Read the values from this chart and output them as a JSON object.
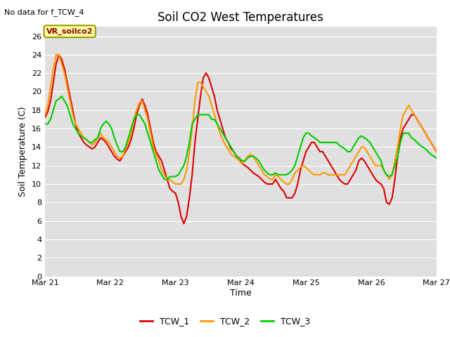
{
  "title": "Soil CO2 West Temperatures",
  "xlabel": "Time",
  "ylabel": "Soil Temperature (C)",
  "note": "No data for f_TCW_4",
  "annotation_label": "VR_soilco2",
  "ylim": [
    0,
    27
  ],
  "yticks": [
    0,
    2,
    4,
    6,
    8,
    10,
    12,
    14,
    16,
    18,
    20,
    22,
    24,
    26
  ],
  "x_start": 0,
  "x_end": 144,
  "xtick_positions": [
    0,
    24,
    48,
    72,
    96,
    120,
    144
  ],
  "xtick_labels": [
    "Mar 21",
    "Mar 22",
    "Mar 23",
    "Mar 24",
    "Mar 25",
    "Mar 26",
    "Mar 27"
  ],
  "legend_entries": [
    "TCW_1",
    "TCW_2",
    "TCW_3"
  ],
  "line_colors": [
    "#dd0000",
    "#ff9900",
    "#00cc00"
  ],
  "line_width": 1.5,
  "fig_bg_color": "#ffffff",
  "axes_bg": "#e0e0e0",
  "grid_color": "#ffffff",
  "title_fontsize": 12,
  "label_fontsize": 9,
  "tick_fontsize": 8,
  "TCW_1": [
    17.2,
    17.8,
    19.0,
    21.0,
    23.0,
    24.0,
    23.5,
    22.5,
    21.0,
    19.5,
    18.0,
    16.5,
    15.5,
    15.0,
    14.5,
    14.2,
    14.0,
    13.8,
    14.0,
    14.5,
    15.0,
    14.8,
    14.5,
    14.0,
    13.5,
    13.0,
    12.7,
    12.5,
    13.0,
    13.5,
    14.0,
    14.8,
    16.0,
    17.5,
    18.5,
    19.2,
    18.5,
    17.5,
    16.0,
    14.5,
    13.5,
    13.0,
    12.5,
    11.5,
    10.5,
    9.5,
    9.2,
    9.0,
    8.0,
    6.5,
    5.7,
    6.5,
    8.5,
    11.0,
    14.5,
    17.0,
    19.5,
    21.5,
    22.0,
    21.5,
    20.5,
    19.5,
    18.0,
    17.0,
    16.0,
    15.0,
    14.5,
    13.8,
    13.5,
    13.0,
    12.8,
    12.2,
    12.0,
    11.8,
    11.5,
    11.2,
    11.0,
    10.8,
    10.5,
    10.2,
    10.0,
    10.0,
    10.0,
    10.5,
    10.0,
    9.5,
    9.2,
    8.5,
    8.5,
    8.5,
    9.0,
    10.0,
    11.5,
    12.5,
    13.5,
    14.0,
    14.5,
    14.5,
    14.0,
    13.5,
    13.5,
    13.0,
    12.5,
    12.0,
    11.5,
    11.0,
    10.5,
    10.2,
    10.0,
    10.0,
    10.5,
    11.0,
    11.5,
    12.5,
    12.8,
    12.5,
    12.0,
    11.5,
    11.0,
    10.5,
    10.2,
    10.0,
    9.5,
    8.0,
    7.8,
    8.5,
    10.5,
    13.0,
    15.0,
    16.0,
    16.5,
    17.0,
    17.5,
    17.5,
    17.0,
    16.5,
    16.0,
    15.5,
    15.0,
    14.5,
    14.0,
    13.5
  ],
  "TCW_2": [
    17.5,
    18.5,
    20.5,
    22.5,
    24.0,
    24.0,
    23.0,
    22.0,
    20.5,
    19.0,
    17.5,
    16.5,
    16.0,
    15.5,
    15.0,
    14.8,
    14.5,
    14.2,
    14.5,
    15.0,
    15.5,
    15.0,
    14.8,
    14.5,
    14.0,
    13.5,
    13.0,
    12.8,
    13.0,
    13.8,
    14.5,
    15.5,
    17.0,
    18.0,
    18.8,
    19.0,
    18.0,
    17.0,
    15.5,
    14.0,
    13.2,
    12.5,
    11.5,
    11.0,
    10.5,
    10.5,
    10.2,
    10.0,
    10.0,
    10.0,
    10.5,
    11.5,
    13.5,
    16.0,
    19.0,
    21.0,
    21.0,
    20.5,
    20.0,
    19.5,
    18.5,
    17.5,
    16.5,
    15.5,
    14.8,
    14.2,
    13.8,
    13.2,
    13.0,
    12.8,
    12.5,
    12.2,
    12.5,
    13.0,
    13.2,
    13.0,
    12.5,
    12.0,
    11.5,
    11.0,
    10.8,
    10.5,
    10.5,
    11.0,
    10.8,
    10.5,
    10.2,
    10.0,
    10.0,
    10.5,
    11.2,
    11.5,
    11.8,
    12.0,
    11.8,
    11.5,
    11.2,
    11.0,
    11.0,
    11.0,
    11.2,
    11.2,
    11.0,
    11.0,
    11.0,
    11.0,
    11.0,
    11.0,
    11.0,
    11.5,
    12.0,
    12.5,
    13.0,
    13.5,
    14.0,
    14.0,
    13.5,
    13.0,
    12.5,
    12.0,
    12.0,
    12.0,
    11.5,
    11.0,
    10.5,
    11.0,
    12.5,
    14.0,
    16.0,
    17.5,
    18.0,
    18.5,
    18.0,
    17.5,
    17.0,
    16.5,
    16.0,
    15.5,
    15.0,
    14.5,
    14.0,
    13.5
  ],
  "TCW_3": [
    16.5,
    16.5,
    17.0,
    18.0,
    19.0,
    19.2,
    19.5,
    19.0,
    18.5,
    17.5,
    16.5,
    16.0,
    15.5,
    15.2,
    15.0,
    14.8,
    14.5,
    14.5,
    14.8,
    15.0,
    16.0,
    16.5,
    16.8,
    16.5,
    16.0,
    15.0,
    14.2,
    13.5,
    13.5,
    14.0,
    15.0,
    16.0,
    17.0,
    17.5,
    17.5,
    17.0,
    16.5,
    15.5,
    14.5,
    13.5,
    12.5,
    11.5,
    11.0,
    10.5,
    10.5,
    10.8,
    10.8,
    10.8,
    11.0,
    11.5,
    12.0,
    13.0,
    14.5,
    16.5,
    17.0,
    17.5,
    17.5,
    17.5,
    17.5,
    17.5,
    17.0,
    17.0,
    16.5,
    16.0,
    15.5,
    15.0,
    14.5,
    14.0,
    13.5,
    13.0,
    12.8,
    12.5,
    12.5,
    12.8,
    13.0,
    13.0,
    12.8,
    12.5,
    12.0,
    11.5,
    11.2,
    11.0,
    11.0,
    11.2,
    11.0,
    11.0,
    11.0,
    11.0,
    11.2,
    11.5,
    12.0,
    13.0,
    14.0,
    15.0,
    15.5,
    15.5,
    15.2,
    15.0,
    14.8,
    14.5,
    14.5,
    14.5,
    14.5,
    14.5,
    14.5,
    14.5,
    14.2,
    14.0,
    13.8,
    13.5,
    13.5,
    14.0,
    14.5,
    15.0,
    15.2,
    15.0,
    14.8,
    14.5,
    14.0,
    13.5,
    13.0,
    12.5,
    11.5,
    11.0,
    10.8,
    11.0,
    12.0,
    13.0,
    14.5,
    15.5,
    15.5,
    15.5,
    15.0,
    14.8,
    14.5,
    14.2,
    14.0,
    13.8,
    13.5,
    13.2,
    13.0,
    12.8
  ]
}
